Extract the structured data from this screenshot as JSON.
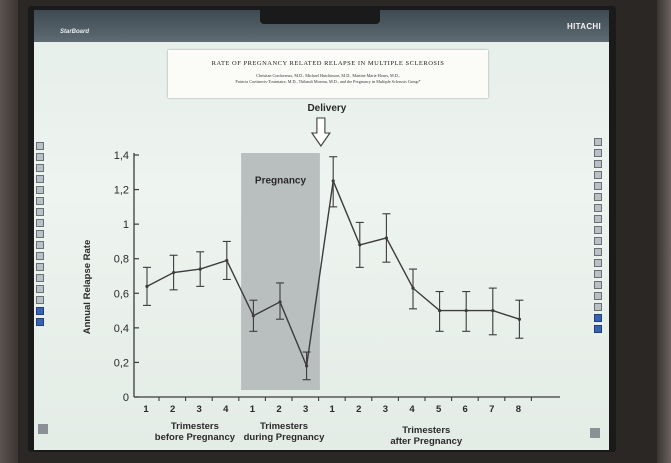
{
  "board": {
    "brand_left": "StarBoard",
    "brand_right": "HITACHI"
  },
  "citation": {
    "title": "Rate of Pregnancy Related Relapse in Multiple Sclerosis",
    "authors_line1": "Christian Confavreux, M.D., Michael Hutchinson, M.D., Martine Marie Hours, M.D.,",
    "authors_line2": "Patricia Cortinovis-Tourniaire, M.D., Thibault Moreau, M.D., and the Pregnancy in Multiple Sclerosis Group*"
  },
  "chart_data": {
    "type": "line",
    "ylabel": "Annual Relapse Rate",
    "ylim": [
      0,
      1.4
    ],
    "yticks": [
      "0",
      "0,2",
      "0,4",
      "0,6",
      "0,8",
      "1",
      "1,2",
      "1,4"
    ],
    "categories": [
      "1",
      "2",
      "3",
      "4",
      "1",
      "2",
      "3",
      "1",
      "2",
      "3",
      "4",
      "5",
      "6",
      "7",
      "8"
    ],
    "values": [
      0.64,
      0.72,
      0.74,
      0.79,
      0.47,
      0.55,
      0.18,
      1.25,
      0.88,
      0.92,
      0.63,
      0.5,
      0.5,
      0.5,
      0.45
    ],
    "error_low": [
      0.53,
      0.62,
      0.64,
      0.68,
      0.38,
      0.45,
      0.1,
      1.1,
      0.75,
      0.78,
      0.51,
      0.38,
      0.38,
      0.36,
      0.34
    ],
    "error_high": [
      0.75,
      0.82,
      0.84,
      0.9,
      0.56,
      0.66,
      0.26,
      1.39,
      1.01,
      1.06,
      0.74,
      0.61,
      0.61,
      0.63,
      0.56
    ],
    "groups": [
      {
        "label_line1": "Trimesters",
        "label_line2": "before Pregnancy"
      },
      {
        "label_line1": "Trimesters",
        "label_line2": "during Pregnancy"
      },
      {
        "label_line1": "Trimesters",
        "label_line2": "after Pregnancy"
      }
    ],
    "shaded_region_label": "Pregnancy",
    "annotation": "Delivery",
    "grid": false,
    "colors": {
      "line": "#3c3c3c",
      "shade": "#b9bfbe",
      "text": "#2a2a2a"
    }
  }
}
